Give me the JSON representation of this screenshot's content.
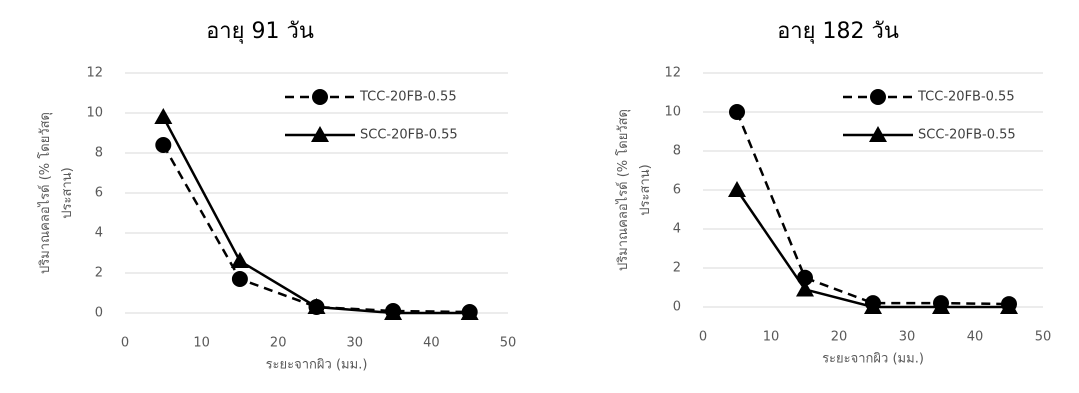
{
  "chart_data": [
    {
      "type": "line",
      "title": "อายุ 91 วัน",
      "xlabel": "ระยะจากผิว (มม.)",
      "ylabel": [
        "ปริมาณคลอไรด์ (% โดยวัสดุ",
        "ประสาน)"
      ],
      "x": [
        5,
        15,
        25,
        35,
        45
      ],
      "series": [
        {
          "name": "TCC-20FB-0.55",
          "color": "#000000",
          "marker": "circle",
          "dash": true,
          "values": [
            8.4,
            1.7,
            0.3,
            0.1,
            0.05
          ]
        },
        {
          "name": "SCC-20FB-0.55",
          "color": "#000000",
          "marker": "triangle",
          "dash": false,
          "values": [
            9.8,
            2.6,
            0.3,
            0.0,
            0.0
          ]
        }
      ],
      "xlim": [
        0,
        50
      ],
      "xticks": [
        0,
        10,
        20,
        30,
        40,
        50
      ],
      "ylim": [
        0,
        12
      ],
      "yticks": [
        0,
        2,
        4,
        6,
        8,
        10,
        12
      ],
      "grid": true
    },
    {
      "type": "line",
      "title": "อายุ 182 วัน",
      "xlabel": "ระยะจากผิว (มม.)",
      "ylabel": [
        "ปริมาณคลอไรด์ (% โดยวัสดุ",
        "ประสาน)"
      ],
      "x": [
        5,
        15,
        25,
        35,
        45
      ],
      "series": [
        {
          "name": "TCC-20FB-0.55",
          "color": "#000000",
          "marker": "circle",
          "dash": true,
          "values": [
            10.0,
            1.5,
            0.2,
            0.2,
            0.15
          ]
        },
        {
          "name": "SCC-20FB-0.55",
          "color": "#000000",
          "marker": "triangle",
          "dash": false,
          "values": [
            6.0,
            0.9,
            0.0,
            0.0,
            0.0
          ]
        }
      ],
      "xlim": [
        0,
        50
      ],
      "xticks": [
        0,
        10,
        20,
        30,
        40,
        50
      ],
      "ylim": [
        0,
        12
      ],
      "yticks": [
        0,
        2,
        4,
        6,
        8,
        10,
        12
      ],
      "grid": true
    }
  ]
}
